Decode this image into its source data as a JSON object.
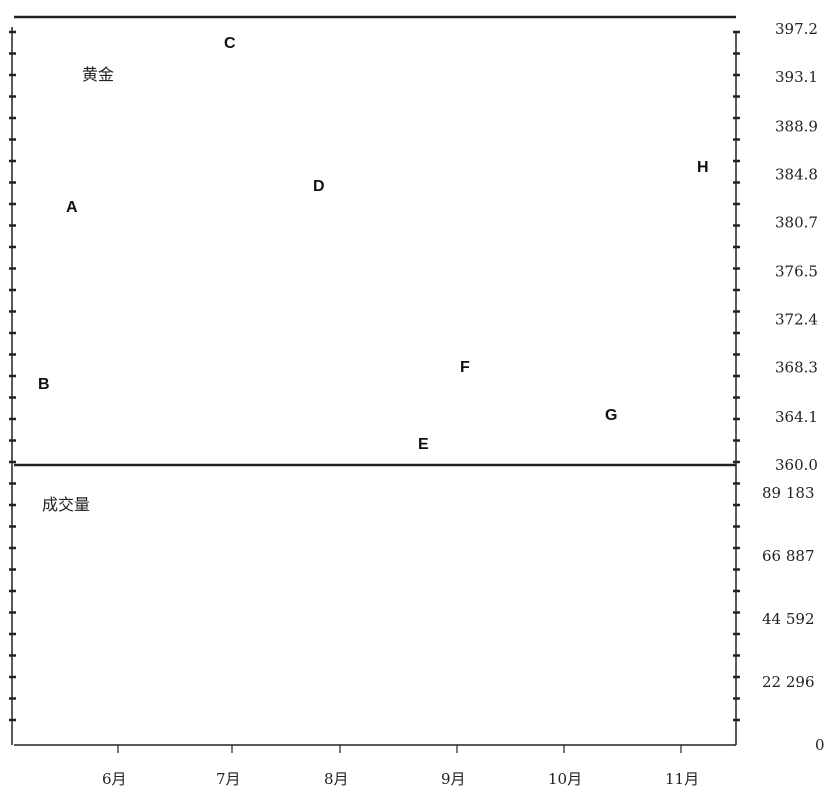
{
  "chart_data": [
    {
      "type": "bar",
      "panel": "price",
      "title": "黄金",
      "ylim": [
        360.0,
        397.2
      ],
      "yticks": [
        "397.2",
        "393.1",
        "388.9",
        "384.8",
        "380.7",
        "376.5",
        "372.4",
        "368.3",
        "364.1",
        "360.0"
      ],
      "xticks": [
        "6月",
        "7月",
        "8月",
        "9月",
        "10月",
        "11月"
      ],
      "point_labels": [
        "A",
        "B",
        "C",
        "D",
        "E",
        "F",
        "G",
        "H"
      ]
    },
    {
      "type": "bar",
      "panel": "volume",
      "title": "成交量",
      "ylim": [
        0,
        89183
      ],
      "yticks": [
        "89 183",
        "66 887",
        "44 592",
        "22 296",
        "0"
      ],
      "xticks": [
        "6月",
        "7月",
        "8月",
        "9月",
        "10月",
        "11月"
      ]
    }
  ]
}
